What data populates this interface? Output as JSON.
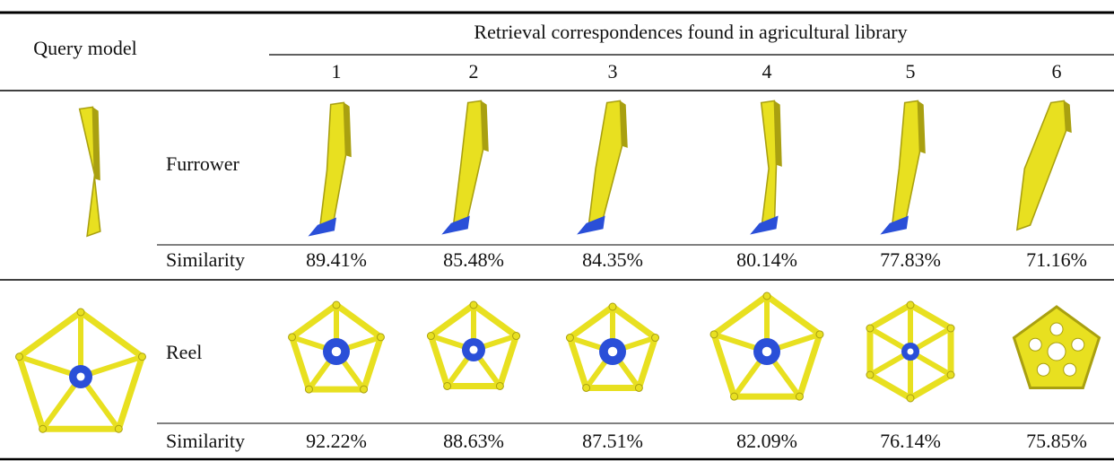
{
  "table": {
    "header": {
      "query": "Query model",
      "retrieval": "Retrieval correspondences found in agricultural library",
      "columns": [
        "1",
        "2",
        "3",
        "4",
        "5",
        "6"
      ]
    },
    "rows": [
      {
        "label": "Furrower",
        "similarity_label": "Similarity",
        "similarity": [
          "89.41%",
          "85.48%",
          "84.35%",
          "80.14%",
          "77.83%",
          "71.16%"
        ]
      },
      {
        "label": "Reel",
        "similarity_label": "Similarity",
        "similarity": [
          "92.22%",
          "88.63%",
          "87.51%",
          "82.09%",
          "76.14%",
          "75.85%"
        ]
      }
    ]
  }
}
